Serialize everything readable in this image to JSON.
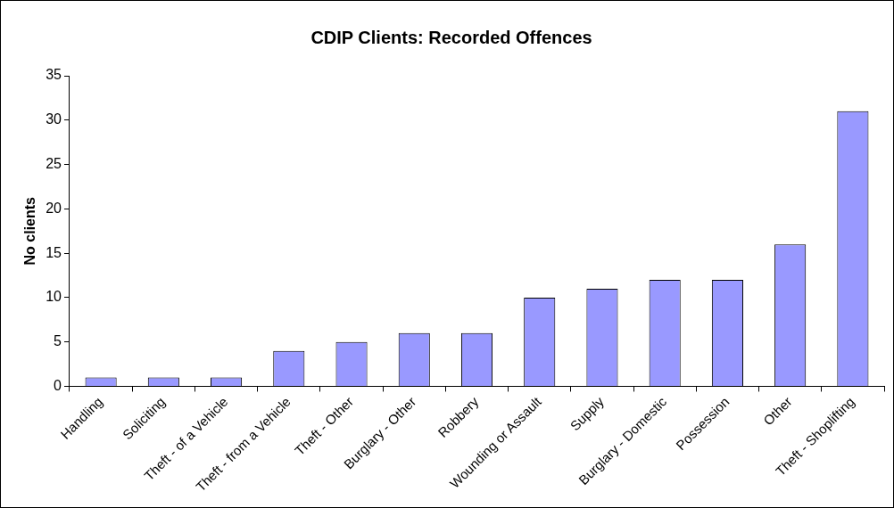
{
  "chart_data": {
    "type": "bar",
    "title": "CDIP Clients: Recorded Offences",
    "ylabel": "No clients",
    "categories": [
      "Handling",
      "Soliciting",
      "Theft - of a Vehicle",
      "Theft - from a Vehicle",
      "Theft - Other",
      "Burglary - Other",
      "Robbery",
      "Wounding or Assault",
      "Supply",
      "Burglary - Domestic",
      "Possession",
      "Other",
      "Theft - Shoplifting"
    ],
    "values": [
      1,
      1,
      1,
      4,
      5,
      6,
      6,
      10,
      11,
      12,
      12,
      16,
      31
    ],
    "color": "#9999ff",
    "ylim": [
      0,
      35
    ],
    "yticks": [
      0,
      5,
      10,
      15,
      20,
      25,
      30,
      35
    ]
  }
}
